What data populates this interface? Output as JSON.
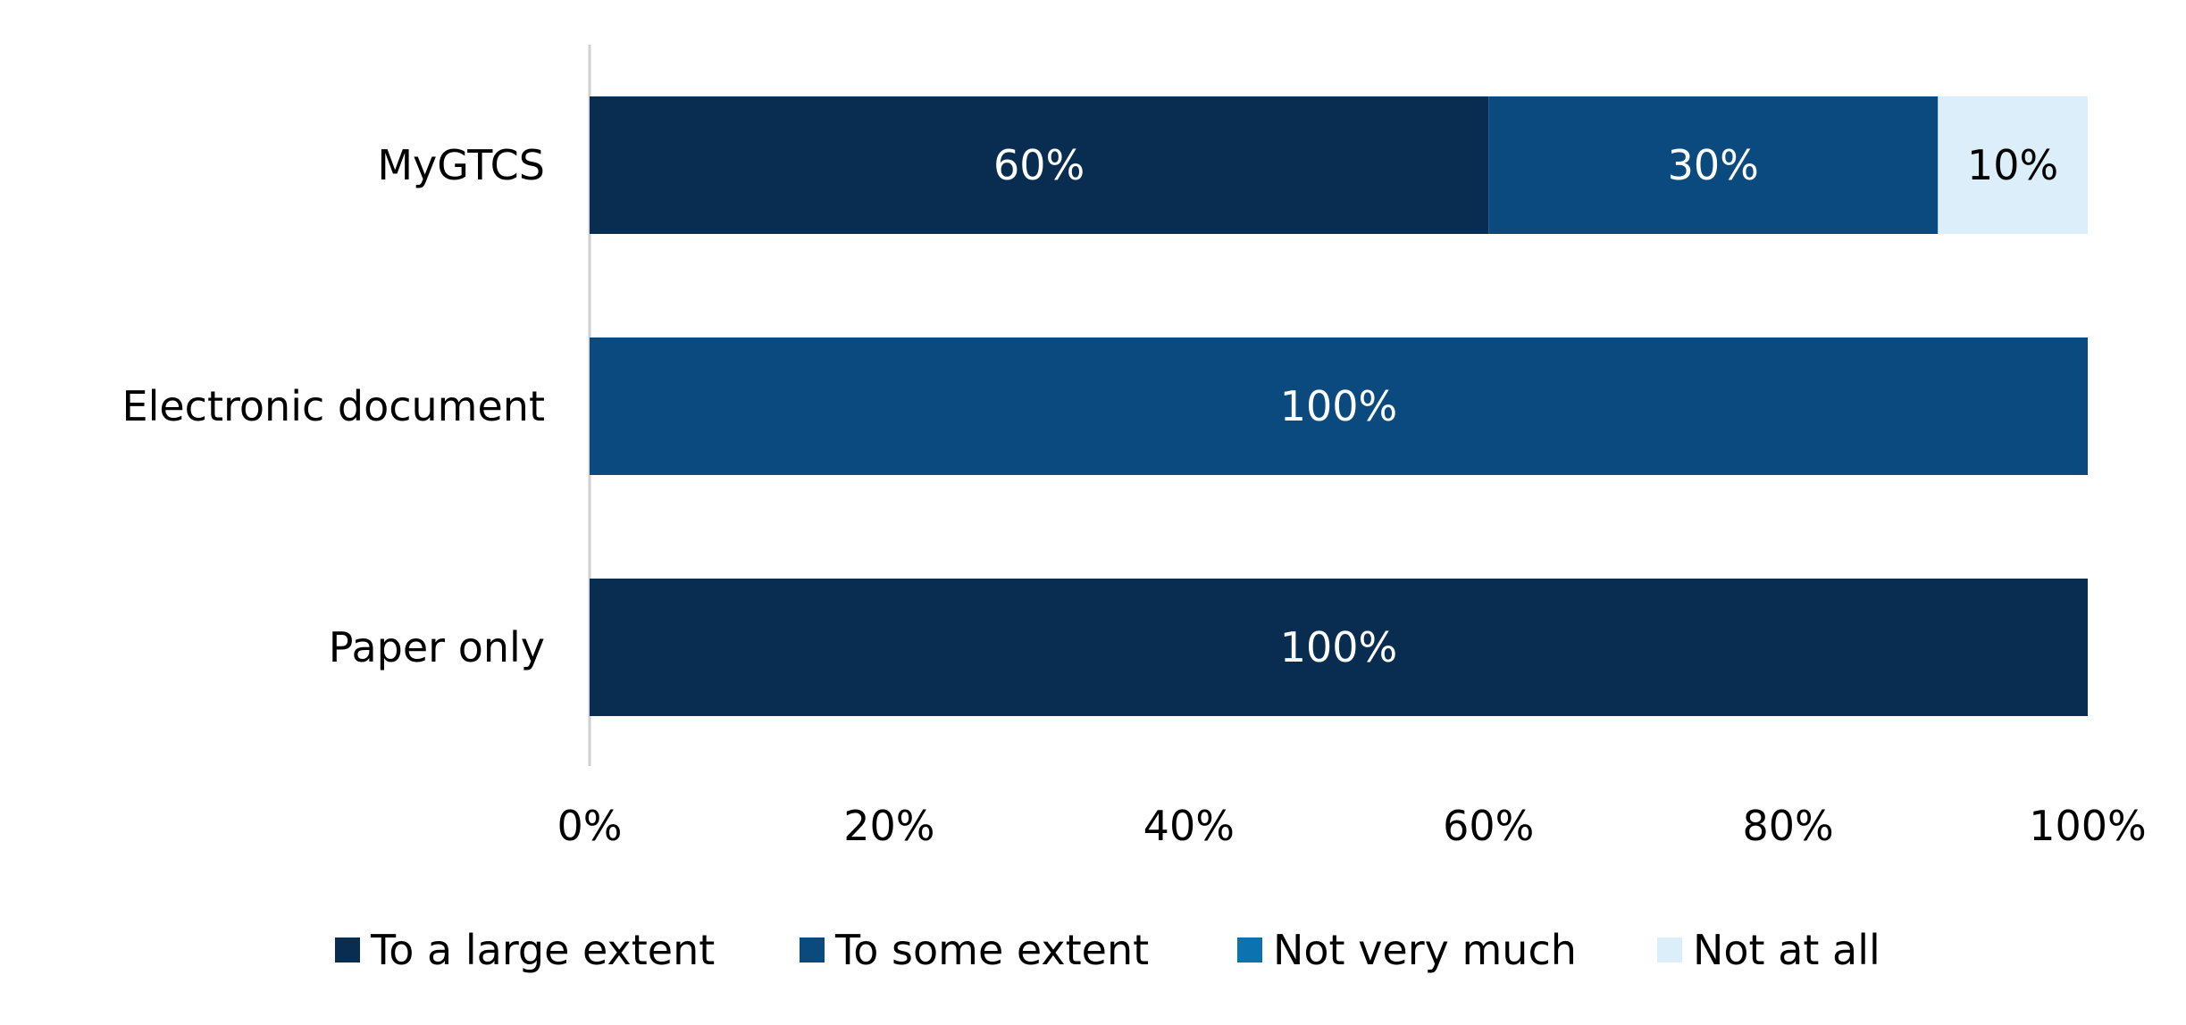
{
  "chart_data": {
    "type": "bar",
    "orientation": "horizontal",
    "stacked": true,
    "title": "",
    "xlabel": "",
    "ylabel": "",
    "xlim": [
      0,
      100
    ],
    "x_ticks": [
      0,
      20,
      40,
      60,
      80,
      100
    ],
    "x_tick_labels": [
      "0%",
      "20%",
      "40%",
      "60%",
      "80%",
      "100%"
    ],
    "categories": [
      "MyGTCS",
      "Electronic document",
      "Paper only"
    ],
    "series": [
      {
        "name": "To a large extent",
        "color": "#082d51",
        "values": [
          60,
          0,
          100
        ],
        "labels": [
          "60%",
          "",
          "100%"
        ],
        "label_color": "#ffffff"
      },
      {
        "name": "To some extent",
        "color": "#0b4a7e",
        "values": [
          30,
          100,
          0
        ],
        "labels": [
          "30%",
          "100%",
          ""
        ],
        "label_color": "#ffffff"
      },
      {
        "name": "Not very much",
        "color": "#0d72b0",
        "values": [
          0,
          0,
          0
        ],
        "labels": [
          "",
          "",
          ""
        ],
        "label_color": "#ffffff"
      },
      {
        "name": "Not at all",
        "color": "#dbeefa",
        "values": [
          10,
          0,
          0
        ],
        "labels": [
          "10%",
          "",
          ""
        ],
        "label_color": "#000000"
      }
    ],
    "grid": false,
    "legend_position": "bottom"
  }
}
